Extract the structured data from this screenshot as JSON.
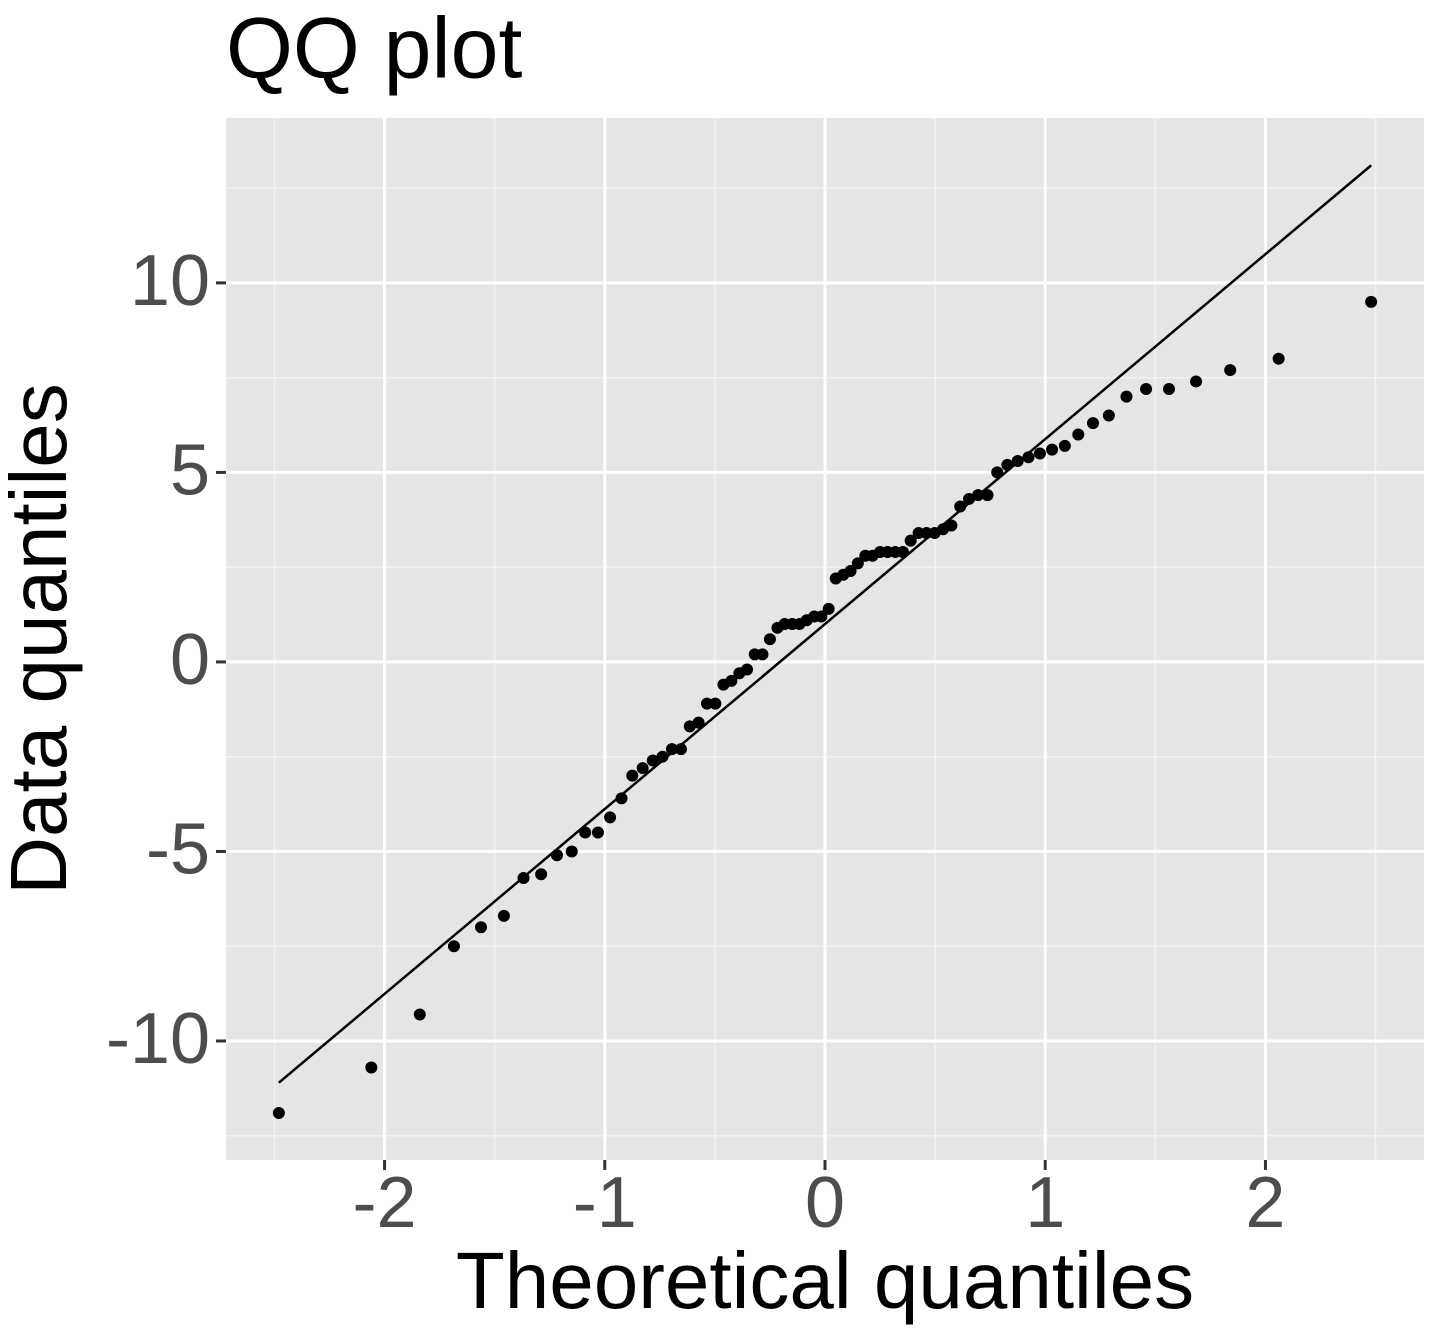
{
  "chart_data": {
    "type": "scatter",
    "title": "QQ plot",
    "x_label": "Theoretical quantiles",
    "y_label": "Data quantiles",
    "xlim": [
      -2.72,
      2.72
    ],
    "ylim": [
      -13.14,
      14.35
    ],
    "xticks": [
      -2,
      -1,
      0,
      1,
      2
    ],
    "yticks": [
      -10,
      -5,
      0,
      5,
      10
    ],
    "xminor": [
      -2.5,
      -1.5,
      -0.5,
      0.5,
      1.5,
      2.5
    ],
    "yminor": [
      -12.5,
      -7.5,
      -2.5,
      2.5,
      7.5,
      12.5
    ],
    "grid": true,
    "color": "#000000",
    "x": [
      -2.48,
      -2.06,
      -1.84,
      -1.685,
      -1.562,
      -1.458,
      -1.369,
      -1.289,
      -1.217,
      -1.15,
      -1.089,
      -1.031,
      -0.976,
      -0.924,
      -0.875,
      -0.828,
      -0.782,
      -0.738,
      -0.695,
      -0.654,
      -0.614,
      -0.574,
      -0.536,
      -0.498,
      -0.461,
      -0.425,
      -0.389,
      -0.354,
      -0.319,
      -0.284,
      -0.25,
      -0.216,
      -0.183,
      -0.149,
      -0.116,
      -0.083,
      -0.049,
      -0.0165,
      0.0165,
      0.049,
      0.083,
      0.116,
      0.149,
      0.183,
      0.216,
      0.25,
      0.284,
      0.319,
      0.354,
      0.389,
      0.425,
      0.461,
      0.498,
      0.536,
      0.574,
      0.614,
      0.654,
      0.695,
      0.738,
      0.782,
      0.828,
      0.875,
      0.924,
      0.976,
      1.031,
      1.089,
      1.15,
      1.217,
      1.289,
      1.369,
      1.458,
      1.562,
      1.685,
      1.84,
      2.06,
      2.48
    ],
    "values": [
      -11.9,
      -10.7,
      -9.3,
      -7.5,
      -7.0,
      -6.7,
      -5.7,
      -5.6,
      -5.1,
      -5.0,
      -4.5,
      -4.5,
      -4.1,
      -3.6,
      -3.0,
      -2.8,
      -2.6,
      -2.5,
      -2.3,
      -2.3,
      -1.7,
      -1.6,
      -1.1,
      -1.1,
      -0.6,
      -0.5,
      -0.3,
      -0.2,
      0.2,
      0.2,
      0.6,
      0.9,
      1.0,
      1.0,
      1.0,
      1.1,
      1.2,
      1.2,
      1.4,
      2.2,
      2.3,
      2.4,
      2.6,
      2.8,
      2.8,
      2.9,
      2.9,
      2.9,
      2.9,
      3.2,
      3.4,
      3.4,
      3.4,
      3.5,
      3.6,
      4.1,
      4.3,
      4.4,
      4.4,
      5.0,
      5.2,
      5.3,
      5.4,
      5.5,
      5.6,
      5.7,
      6.0,
      6.3,
      6.5,
      7.0,
      7.2,
      7.2,
      7.4,
      7.7,
      8.0,
      9.5
    ],
    "reference_line": {
      "x": [
        -2.48,
        2.48
      ],
      "y": [
        -11.1,
        13.1
      ]
    }
  }
}
